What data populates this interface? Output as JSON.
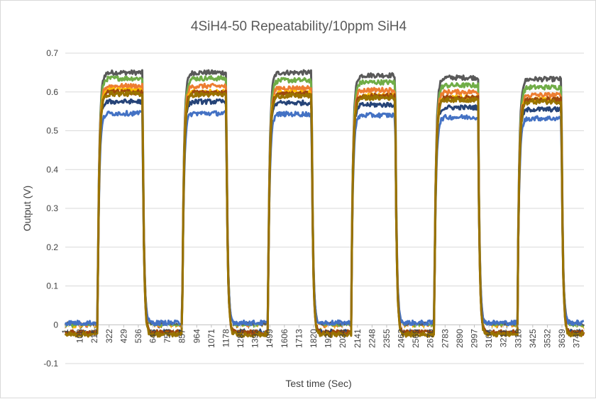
{
  "chart_data": {
    "type": "line",
    "title": "4SiH4-50 Repeatability/10ppm SiH4",
    "xlabel": "Test time (Sec)",
    "ylabel": "Output (V)",
    "ylim": [
      -0.1,
      0.7
    ],
    "xlim": [
      1,
      3800
    ],
    "y_ticks": [
      "-0.1",
      "0",
      "0.1",
      "0.2",
      "0.3",
      "0.4",
      "0.5",
      "0.6",
      "0.7"
    ],
    "x_ticks": [
      "1",
      "108",
      "215",
      "322",
      "429",
      "536",
      "643",
      "750",
      "857",
      "964",
      "1071",
      "1178",
      "1285",
      "1392",
      "1499",
      "1606",
      "1713",
      "1820",
      "1927",
      "2034",
      "2141",
      "2248",
      "2355",
      "2462",
      "2569",
      "2676",
      "2783",
      "2890",
      "2997",
      "3104",
      "3211",
      "3318",
      "3425",
      "3532",
      "3639",
      "3746"
    ],
    "grid": "horizontal",
    "legend": "none",
    "pulses": [
      {
        "on": 237,
        "off": 567
      },
      {
        "on": 857,
        "off": 1180
      },
      {
        "on": 1485,
        "off": 1805
      },
      {
        "on": 2095,
        "off": 2418
      },
      {
        "on": 2703,
        "off": 3025
      },
      {
        "on": 3313,
        "off": 3635
      }
    ],
    "series": [
      {
        "color": "#595959",
        "baseline": 0.0,
        "plateaus": [
          0.65,
          0.65,
          0.65,
          0.643,
          0.637,
          0.633
        ]
      },
      {
        "color": "#70ad47",
        "baseline": -0.005,
        "plateaus": [
          0.635,
          0.635,
          0.63,
          0.625,
          0.617,
          0.612
        ]
      },
      {
        "color": "#ed7d31",
        "baseline": -0.01,
        "plateaus": [
          0.615,
          0.615,
          0.61,
          0.605,
          0.6,
          0.592
        ]
      },
      {
        "color": "#ffc000",
        "baseline": -0.012,
        "plateaus": [
          0.605,
          0.6,
          0.598,
          0.59,
          0.585,
          0.58
        ]
      },
      {
        "color": "#264478",
        "baseline": -0.015,
        "plateaus": [
          0.575,
          0.575,
          0.572,
          0.567,
          0.56,
          0.555
        ]
      },
      {
        "color": "#ffffff",
        "baseline": -0.01,
        "plateaus": [
          0.56,
          0.56,
          0.555,
          0.55,
          0.545,
          0.54
        ]
      },
      {
        "color": "#4472c4",
        "baseline": 0.005,
        "plateaus": [
          0.545,
          0.545,
          0.543,
          0.54,
          0.535,
          0.532
        ]
      },
      {
        "color": "#9e480e",
        "baseline": -0.02,
        "plateaus": [
          0.6,
          0.598,
          0.595,
          0.59,
          0.585,
          0.58
        ]
      },
      {
        "color": "#997300",
        "baseline": -0.025,
        "plateaus": [
          0.595,
          0.593,
          0.59,
          0.585,
          0.58,
          0.575
        ]
      }
    ]
  }
}
